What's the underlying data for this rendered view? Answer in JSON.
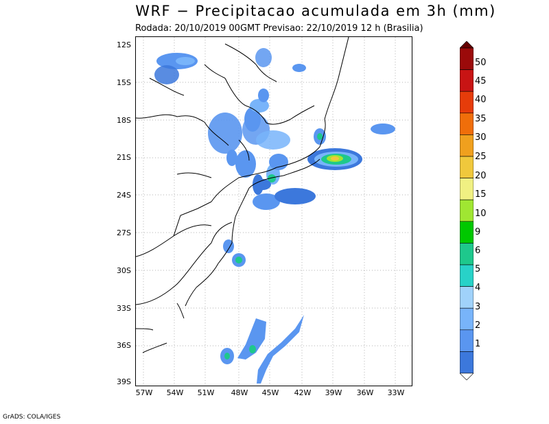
{
  "title": "WRF − Precipitacao acumulada em 3h (mm)",
  "subtitle": "Rodada: 20/10/2019 00GMT Previsao: 22/10/2019 12 h (Brasilia)",
  "credit": "GrADS: COLA/IGES",
  "lat_labels": [
    "12S",
    "15S",
    "18S",
    "21S",
    "24S",
    "27S",
    "30S",
    "33S",
    "36S",
    "39S"
  ],
  "lon_labels": [
    "57W",
    "54W",
    "51W",
    "48W",
    "45W",
    "42W",
    "39W",
    "36W",
    "33W"
  ],
  "legend": {
    "unit": "mm",
    "levels": [
      "1",
      "2",
      "3",
      "4",
      "5",
      "6",
      "9",
      "10",
      "15",
      "20",
      "25",
      "30",
      "35",
      "40",
      "45",
      "50"
    ],
    "colors": [
      "#ffffff",
      "#3c78dc",
      "#5a96f0",
      "#78b4fa",
      "#a0d2fa",
      "#28d2c8",
      "#1ec88c",
      "#00c800",
      "#a0e632",
      "#f0f082",
      "#f0c83c",
      "#f0a01e",
      "#f06e0a",
      "#e63c0a",
      "#c81414",
      "#9b0a0a",
      "#640000"
    ]
  },
  "map": {
    "lon_range": [
      -57.5,
      -32.5
    ],
    "lat_range": [
      -39.2,
      -11.8
    ],
    "grid": "dotted"
  }
}
